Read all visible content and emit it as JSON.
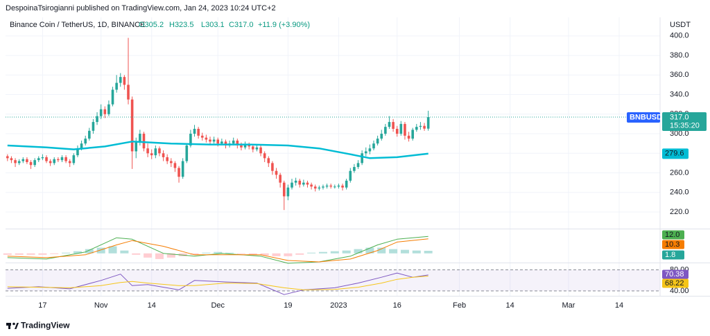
{
  "header": {
    "publisher": "DespoinaTsirogianni published on TradingView.com, Jan 24, 2023 10:24 UTC+2"
  },
  "chart_data": {
    "type": "candlestick",
    "title": "Binance Coin / TetherUS, 1D, BINANCE",
    "ohlc_labels": [
      "O305.2",
      "H323.5",
      "L303.1",
      "C317.0",
      "+11.9 (+3.90%)"
    ],
    "symbol": "BNBUSDT",
    "currency": "USDT",
    "countdown": "15:35:20",
    "last_price_label": "317.0",
    "up_color": "#26a69a",
    "down_color": "#ef5350",
    "grid": true,
    "open": [
      277,
      275,
      273,
      270,
      272,
      274,
      271,
      268,
      273,
      275,
      276,
      272,
      270,
      274,
      273,
      276,
      272,
      270,
      278,
      285,
      290,
      295,
      303,
      312,
      318,
      325,
      320,
      330,
      345,
      352,
      358,
      350,
      335,
      282,
      292,
      300,
      285,
      280,
      278,
      285,
      280,
      276,
      272,
      270,
      265,
      256,
      272,
      288,
      300,
      305,
      298,
      296,
      294,
      292,
      294,
      290,
      292,
      288,
      290,
      293,
      288,
      286,
      289,
      287,
      284,
      286,
      280,
      275,
      270,
      262,
      258,
      250,
      236,
      245,
      250,
      252,
      248,
      250,
      248,
      246,
      244,
      245,
      246,
      247,
      246,
      246,
      247,
      245,
      252,
      262,
      266,
      270,
      280,
      282,
      285,
      290,
      295,
      300,
      307,
      312,
      305,
      300,
      310,
      298,
      295,
      304,
      307,
      308,
      305.2
    ],
    "high": [
      279,
      277,
      275,
      274,
      276,
      276,
      273,
      275,
      277,
      279,
      278,
      274,
      276,
      276,
      278,
      278,
      274,
      280,
      288,
      293,
      298,
      306,
      315,
      322,
      330,
      328,
      334,
      348,
      360,
      362,
      360,
      398,
      338,
      296,
      304,
      302,
      290,
      284,
      288,
      287,
      283,
      279,
      275,
      272,
      267,
      275,
      290,
      304,
      309,
      307,
      301,
      299,
      297,
      297,
      296,
      295,
      294,
      293,
      296,
      295,
      291,
      292,
      291,
      289,
      289,
      288,
      282,
      277,
      272,
      265,
      260,
      252,
      248,
      254,
      255,
      254,
      253,
      252,
      250,
      248,
      247,
      248,
      249,
      249,
      248,
      249,
      249,
      254,
      265,
      269,
      273,
      283,
      286,
      289,
      293,
      298,
      304,
      310,
      318,
      315,
      308,
      313,
      312,
      302,
      306,
      310,
      312,
      311,
      323.5
    ],
    "low": [
      272,
      270,
      266,
      268,
      270,
      269,
      264,
      266,
      271,
      273,
      270,
      267,
      268,
      271,
      271,
      270,
      266,
      268,
      276,
      283,
      288,
      293,
      300,
      309,
      315,
      316,
      318,
      328,
      342,
      348,
      345,
      330,
      264,
      275,
      288,
      282,
      276,
      274,
      275,
      277,
      272,
      269,
      266,
      261,
      250,
      254,
      270,
      286,
      297,
      295,
      293,
      291,
      289,
      290,
      287,
      288,
      285,
      286,
      288,
      285,
      283,
      284,
      284,
      281,
      282,
      277,
      271,
      266,
      258,
      254,
      245,
      222,
      232,
      243,
      247,
      245,
      246,
      245,
      243,
      241,
      242,
      243,
      244,
      244,
      244,
      244,
      242,
      243,
      250,
      260,
      264,
      268,
      277,
      279,
      283,
      288,
      293,
      298,
      305,
      302,
      297,
      298,
      294,
      292,
      293,
      302,
      304,
      303,
      303.1
    ],
    "close": [
      275,
      273,
      270,
      272,
      274,
      271,
      268,
      273,
      275,
      276,
      272,
      270,
      274,
      273,
      276,
      272,
      270,
      278,
      285,
      290,
      295,
      303,
      312,
      318,
      325,
      320,
      330,
      345,
      352,
      358,
      350,
      335,
      282,
      292,
      300,
      285,
      280,
      278,
      285,
      280,
      276,
      272,
      270,
      265,
      256,
      272,
      288,
      300,
      305,
      298,
      296,
      294,
      292,
      294,
      290,
      292,
      288,
      290,
      293,
      288,
      286,
      289,
      287,
      284,
      286,
      280,
      275,
      270,
      262,
      258,
      250,
      236,
      245,
      250,
      252,
      248,
      250,
      248,
      246,
      244,
      245,
      246,
      247,
      246,
      246,
      247,
      245,
      252,
      262,
      266,
      270,
      280,
      282,
      285,
      290,
      295,
      300,
      307,
      312,
      305,
      300,
      310,
      298,
      295,
      304,
      307,
      308,
      305.2,
      317.0
    ],
    "xlim": [
      -0.5,
      167.5
    ],
    "xticks": [
      {
        "value": 9,
        "label": "17"
      },
      {
        "value": 24,
        "label": "Nov"
      },
      {
        "value": 37,
        "label": "14"
      },
      {
        "value": 54,
        "label": "Dec"
      },
      {
        "value": 72,
        "label": "19"
      },
      {
        "value": 85,
        "label": "2023"
      },
      {
        "value": 100,
        "label": "16"
      },
      {
        "value": 116,
        "label": "Feb"
      },
      {
        "value": 129,
        "label": "14"
      },
      {
        "value": 144,
        "label": "Mar"
      },
      {
        "value": 157,
        "label": "14"
      }
    ],
    "ylim": [
      203,
      419
    ],
    "yticks": [
      {
        "value": 220,
        "label": "220.0"
      },
      {
        "value": 240,
        "label": "240.0"
      },
      {
        "value": 260,
        "label": "260.0"
      },
      {
        "value": 280,
        "label": "280.0"
      },
      {
        "value": 300,
        "label": "300.0"
      },
      {
        "value": 320,
        "label": "320.0"
      },
      {
        "value": 340,
        "label": "340.0"
      },
      {
        "value": 360,
        "label": "360.0"
      },
      {
        "value": 380,
        "label": "380.0"
      },
      {
        "value": 400,
        "label": "400.0"
      }
    ],
    "ma": {
      "color": "#00bcd4",
      "x": [
        0,
        10,
        17,
        25,
        32,
        42,
        52,
        62,
        72,
        80,
        88,
        93,
        100,
        108
      ],
      "values": [
        288,
        286,
        284,
        287,
        292,
        290,
        289,
        289,
        288,
        285,
        279,
        275,
        276,
        279.6
      ],
      "last_label": "279.6"
    },
    "macd": {
      "ylim": [
        -6,
        16
      ],
      "x": [
        0,
        10,
        20,
        28,
        32,
        40,
        48,
        55,
        65,
        72,
        80,
        88,
        95,
        100,
        108
      ],
      "macd": {
        "color": "#4caf50",
        "values": [
          -3,
          -4,
          1,
          11,
          10,
          0,
          -2,
          0,
          -2,
          -7,
          -6,
          -2,
          6,
          10,
          12.0
        ],
        "last_label": "12.0"
      },
      "signal": {
        "color": "#f57c00",
        "values": [
          -2,
          -3,
          -1,
          6,
          9,
          5,
          -1,
          -1,
          -1,
          -5,
          -6,
          -4,
          2,
          8,
          10.3
        ],
        "last_label": "10.3"
      },
      "histogram": {
        "up_color": "#b2dfdb",
        "down_color": "#ffcdd2",
        "x": [
          0,
          3,
          6,
          9,
          12,
          15,
          18,
          21,
          24,
          27,
          30,
          33,
          36,
          39,
          42,
          45,
          48,
          51,
          54,
          57,
          60,
          63,
          66,
          69,
          72,
          75,
          78,
          81,
          84,
          87,
          90,
          93,
          96,
          99,
          102,
          105,
          108
        ],
        "values": [
          -1,
          -1,
          -1,
          -1,
          -0.5,
          0.5,
          1.5,
          3,
          4,
          5,
          2,
          -1,
          -3,
          -4,
          -3,
          -2,
          -1,
          0.5,
          1,
          0.5,
          -0.5,
          -1,
          -1.5,
          -2,
          -2,
          -1,
          0.5,
          1,
          1.5,
          2,
          3,
          4,
          4,
          3,
          2.5,
          2,
          1.8
        ],
        "last_label": "1.8"
      }
    },
    "rsi": {
      "ylim": [
        32,
        90
      ],
      "yticks": [
        {
          "value": 80,
          "label": "80.00"
        },
        {
          "value": 40,
          "label": "40.00"
        }
      ],
      "x": [
        0,
        8,
        16,
        24,
        29,
        32,
        36,
        44,
        48,
        56,
        64,
        71,
        76,
        84,
        90,
        96,
        100,
        104,
        108
      ],
      "rsi": {
        "color": "#7e57c2",
        "values": [
          45,
          48,
          44,
          60,
          72,
          50,
          52,
          42,
          60,
          57,
          55,
          33,
          42,
          46,
          55,
          66,
          74,
          66,
          70.38
        ],
        "last_label": "70.38"
      },
      "rsi_ma": {
        "color": "#f5c518",
        "values": [
          48,
          47,
          46,
          50,
          56,
          58,
          55,
          50,
          50,
          55,
          54,
          46,
          42,
          43,
          47,
          55,
          62,
          66,
          68.22
        ],
        "last_label": "68.22"
      }
    }
  },
  "footer": {
    "brand": "TradingView"
  }
}
